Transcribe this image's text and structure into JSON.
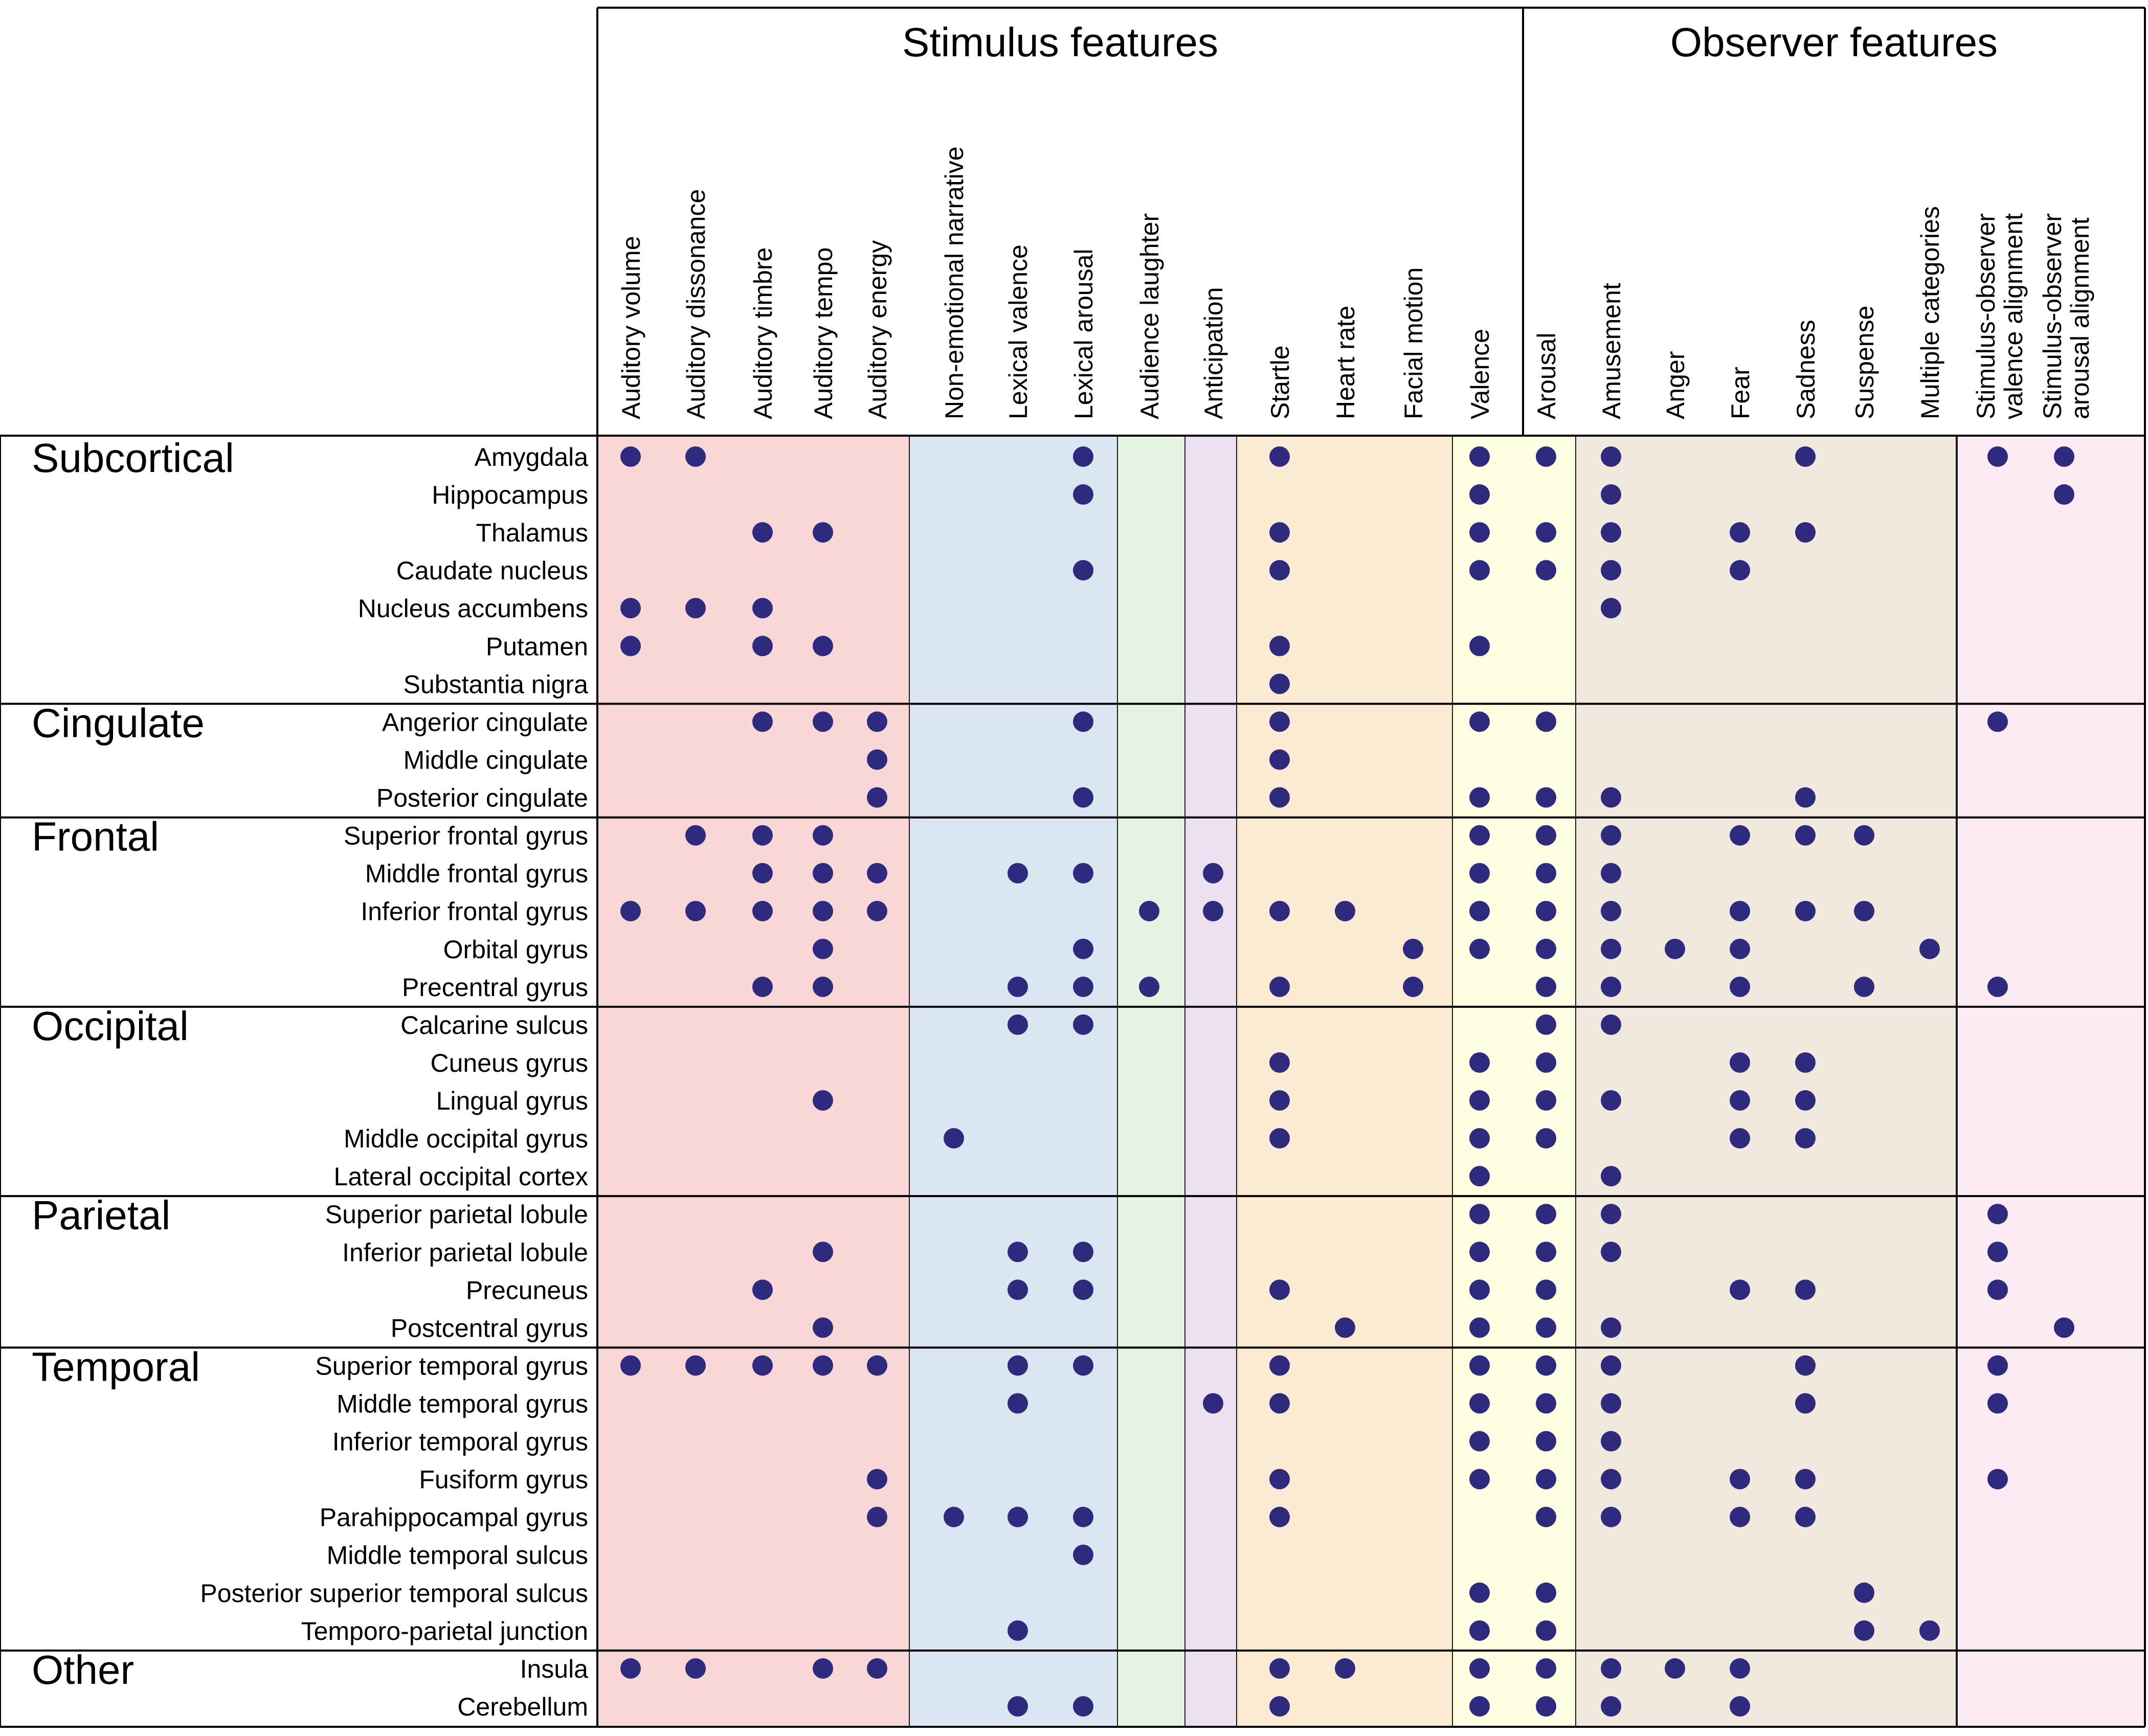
{
  "chart_data": {
    "type": "table",
    "groups": [
      {
        "label": "Stimulus features",
        "span": 14
      },
      {
        "label": "Observer features",
        "span": 9
      }
    ],
    "columns": [
      "Auditory volume",
      "Auditory dissonance",
      "Auditory timbre",
      "Auditory tempo",
      "Auditory energy",
      "Non-emotional narrative",
      "Lexical valence",
      "Lexical arousal",
      "Audience laughter",
      "Anticipation",
      "Startle",
      "Heart rate",
      "Facial motion",
      "Valence",
      "Arousal",
      "Amusement",
      "Anger",
      "Fear",
      "Sadness",
      "Suspense",
      "Multiple categories",
      "Stimulus-observer valence alignment",
      "Stimulus-observer arousal alignment"
    ],
    "column_bands": [
      {
        "color": "#fad7d7",
        "from": 0,
        "to": 4
      },
      {
        "color": "#dae6f2",
        "from": 5,
        "to": 7
      },
      {
        "color": "#e5f4e2",
        "from": 8,
        "to": 8
      },
      {
        "color": "#ede1f1",
        "from": 9,
        "to": 9
      },
      {
        "color": "#fcebd3",
        "from": 10,
        "to": 11
      },
      {
        "color": "#fefee2",
        "from": 12,
        "to": 12
      },
      {
        "color": "#f1e9dd",
        "from": 13,
        "to": 14
      },
      {
        "color": "#fcebf3",
        "from": 15,
        "to": 20
      },
      {
        "color": "#f6f6f6",
        "from": 21,
        "to": 22
      }
    ],
    "sections": [
      {
        "name": "Subcortical",
        "rows": [
          {
            "label": "Amygdala",
            "marks": [
              0,
              1,
              7,
              10,
              13,
              14,
              15,
              18,
              21,
              22
            ]
          },
          {
            "label": "Hippocampus",
            "marks": [
              7,
              13,
              15,
              22
            ]
          },
          {
            "label": "Thalamus",
            "marks": [
              2,
              3,
              10,
              13,
              14,
              15,
              17,
              18
            ]
          },
          {
            "label": "Caudate nucleus",
            "marks": [
              7,
              10,
              13,
              14,
              15,
              17
            ]
          },
          {
            "label": "Nucleus accumbens",
            "marks": [
              0,
              1,
              2,
              15
            ]
          },
          {
            "label": "Putamen",
            "marks": [
              0,
              2,
              3,
              10,
              13
            ]
          },
          {
            "label": "Substantia nigra",
            "marks": [
              10
            ]
          }
        ]
      },
      {
        "name": "Cingulate",
        "rows": [
          {
            "label": "Angerior cingulate",
            "marks": [
              2,
              3,
              4,
              7,
              10,
              13,
              14,
              21
            ]
          },
          {
            "label": "Middle cingulate",
            "marks": [
              4,
              10
            ]
          },
          {
            "label": "Posterior cingulate",
            "marks": [
              4,
              7,
              10,
              13,
              14,
              15,
              18
            ]
          }
        ]
      },
      {
        "name": "Frontal",
        "rows": [
          {
            "label": "Superior frontal gyrus",
            "marks": [
              1,
              2,
              3,
              13,
              14,
              15,
              17,
              18,
              19
            ]
          },
          {
            "label": "Middle frontal gyrus",
            "marks": [
              2,
              3,
              4,
              6,
              7,
              9,
              13,
              14,
              15
            ]
          },
          {
            "label": "Inferior frontal gyrus",
            "marks": [
              0,
              1,
              2,
              3,
              4,
              8,
              9,
              10,
              11,
              13,
              14,
              15,
              17,
              18,
              19
            ]
          },
          {
            "label": "Orbital gyrus",
            "marks": [
              3,
              7,
              12,
              13,
              14,
              15,
              16,
              17,
              20
            ]
          },
          {
            "label": "Precentral gyrus",
            "marks": [
              2,
              3,
              6,
              7,
              8,
              10,
              12,
              14,
              15,
              17,
              19,
              21
            ]
          }
        ]
      },
      {
        "name": "Occipital",
        "rows": [
          {
            "label": "Calcarine sulcus",
            "marks": [
              6,
              7,
              14,
              15
            ]
          },
          {
            "label": "Cuneus gyrus",
            "marks": [
              10,
              13,
              14,
              17,
              18
            ]
          },
          {
            "label": "Lingual gyrus",
            "marks": [
              3,
              10,
              13,
              14,
              15,
              17,
              18
            ]
          },
          {
            "label": "Middle occipital gyrus",
            "marks": [
              5,
              10,
              13,
              14,
              17,
              18
            ]
          },
          {
            "label": "Lateral occipital cortex",
            "marks": [
              13,
              15
            ]
          }
        ]
      },
      {
        "name": "Parietal",
        "rows": [
          {
            "label": "Superior parietal lobule",
            "marks": [
              13,
              14,
              15,
              21
            ]
          },
          {
            "label": "Inferior parietal lobule",
            "marks": [
              3,
              6,
              7,
              13,
              14,
              15,
              21
            ]
          },
          {
            "label": "Precuneus",
            "marks": [
              2,
              6,
              7,
              10,
              13,
              14,
              17,
              18,
              21
            ]
          },
          {
            "label": "Postcentral gyrus",
            "marks": [
              3,
              11,
              13,
              14,
              15,
              22
            ]
          }
        ]
      },
      {
        "name": "Temporal",
        "rows": [
          {
            "label": "Superior temporal gyrus",
            "marks": [
              0,
              1,
              2,
              3,
              4,
              6,
              7,
              10,
              13,
              14,
              15,
              18,
              21
            ]
          },
          {
            "label": "Middle temporal gyrus",
            "marks": [
              6,
              9,
              10,
              13,
              14,
              15,
              18,
              21
            ]
          },
          {
            "label": "Inferior temporal gyrus",
            "marks": [
              13,
              14,
              15
            ]
          },
          {
            "label": "Fusiform gyrus",
            "marks": [
              4,
              10,
              13,
              14,
              15,
              17,
              18,
              21
            ]
          },
          {
            "label": "Parahippocampal gyrus",
            "marks": [
              4,
              5,
              6,
              7,
              10,
              14,
              15,
              17,
              18
            ]
          },
          {
            "label": "Middle temporal sulcus",
            "marks": [
              7
            ]
          },
          {
            "label": "Posterior superior temporal sulcus",
            "marks": [
              13,
              14,
              19
            ]
          },
          {
            "label": "Temporo-parietal junction",
            "marks": [
              6,
              13,
              14,
              19,
              20
            ]
          }
        ]
      },
      {
        "name": "Other",
        "rows": [
          {
            "label": "Insula",
            "marks": [
              0,
              1,
              3,
              4,
              10,
              11,
              13,
              14,
              15,
              16,
              17
            ]
          },
          {
            "label": "Cerebellum",
            "marks": [
              6,
              7,
              10,
              13,
              14,
              15,
              17
            ]
          }
        ]
      }
    ],
    "dot_color": "#2e2a7e"
  }
}
